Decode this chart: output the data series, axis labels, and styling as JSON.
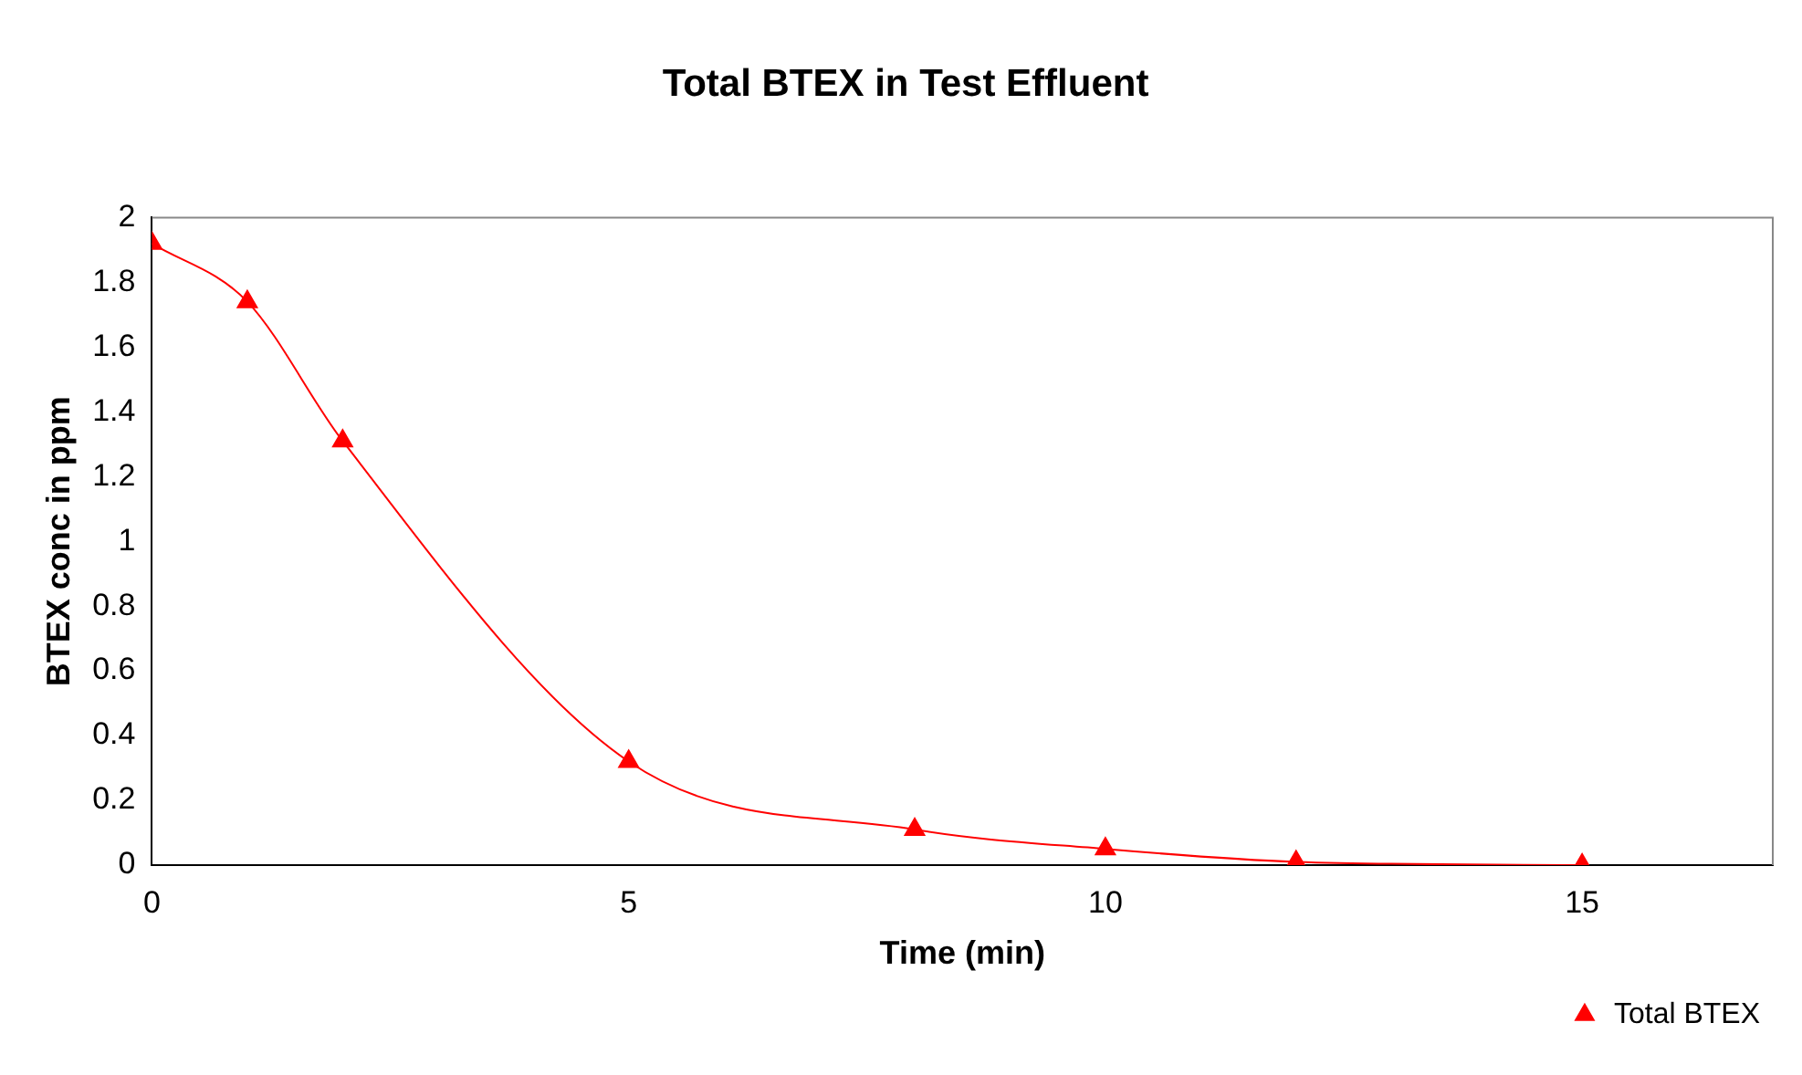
{
  "chart_data": {
    "type": "line",
    "title": "Total BTEX in Test Effluent",
    "xlabel": "Time (min)",
    "ylabel": "BTEX conc in ppm",
    "x": [
      0,
      1,
      2,
      5,
      8,
      10,
      12,
      15
    ],
    "series": [
      {
        "name": "Total BTEX",
        "color": "#ff0000",
        "values": [
          1.92,
          1.74,
          1.31,
          0.32,
          0.11,
          0.05,
          0.01,
          0
        ]
      }
    ],
    "xlim": [
      0,
      17
    ],
    "xticks": [
      0,
      5,
      10,
      15
    ],
    "ylim": [
      0,
      2
    ],
    "yticks": [
      0,
      0.2,
      0.4,
      0.6,
      0.8,
      1,
      1.2,
      1.4,
      1.6,
      1.8,
      2
    ],
    "grid": false,
    "legend": "bottom right",
    "marker": "triangle",
    "line_style": "solid"
  }
}
